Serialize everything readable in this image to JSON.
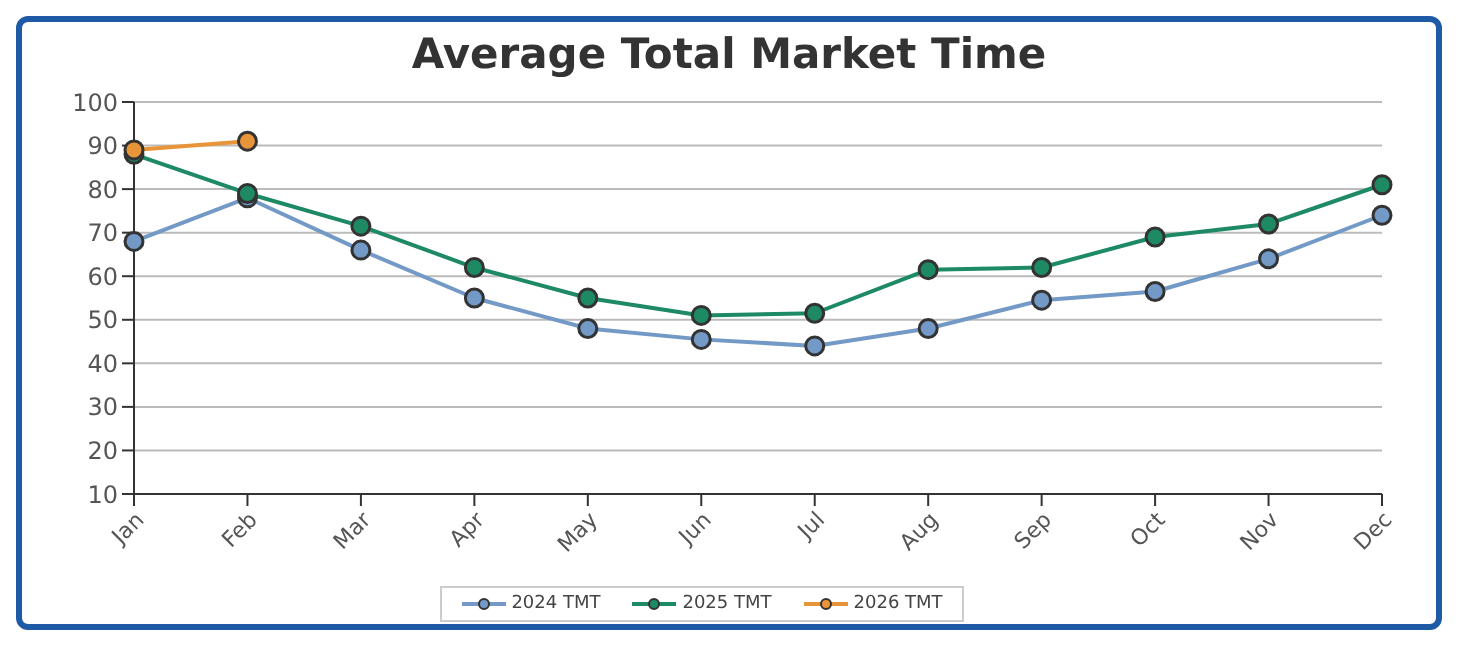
{
  "chart_data": {
    "type": "line",
    "title": "Average Total Market Time",
    "categories": [
      "Jan",
      "Feb",
      "Mar",
      "Apr",
      "May",
      "Jun",
      "Jul",
      "Aug",
      "Sep",
      "Oct",
      "Nov",
      "Dec"
    ],
    "series": [
      {
        "name": "2024 TMT",
        "color": "#7399c6",
        "values": [
          68,
          78,
          66,
          55,
          48,
          45.5,
          44,
          48,
          54.5,
          56.5,
          64,
          74
        ]
      },
      {
        "name": "2025 TMT",
        "color": "#1e8a64",
        "values": [
          88,
          79,
          71.5,
          62,
          55,
          51,
          51.5,
          61.5,
          62,
          69,
          72,
          81
        ]
      },
      {
        "name": "2026 TMT",
        "color": "#e8953a",
        "values": [
          89,
          91,
          null,
          null,
          null,
          null,
          null,
          null,
          null,
          null,
          null,
          null
        ]
      }
    ],
    "ylim": [
      10,
      100
    ],
    "yticks": [
      10,
      20,
      30,
      40,
      50,
      60,
      70,
      80,
      90,
      100
    ],
    "grid": "y",
    "legend": "bottom",
    "marker": "circle",
    "line_style": "solid"
  }
}
